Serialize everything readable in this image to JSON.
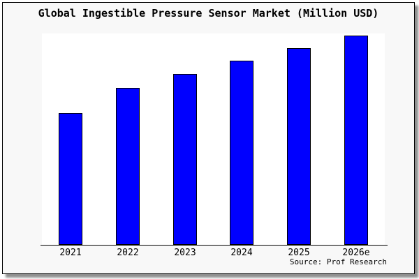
{
  "frame": {
    "background": "#f8f8f8",
    "border_color": "#000000",
    "shadow_color": "#8f8f8f"
  },
  "source": "Source: Prof Research",
  "chart_data": {
    "type": "bar",
    "title": "Global Ingestible Pressure Sensor Market (Million USD)",
    "categories": [
      "2021",
      "2022",
      "2023",
      "2024",
      "2025",
      "2026e"
    ],
    "values": [
      62.4,
      74.3,
      80.9,
      87.1,
      93.1,
      99.0
    ],
    "value_units": "percent of plot height (no numeric y-axis shown in image)",
    "xlabel": "",
    "ylabel": "",
    "ylim": [
      0,
      100
    ],
    "grid": false,
    "legend": false,
    "bar_color": "#0000ff",
    "bar_edge_color": "#000000",
    "plot_background": "#ffffff",
    "source_label": "Source: Prof Research"
  }
}
